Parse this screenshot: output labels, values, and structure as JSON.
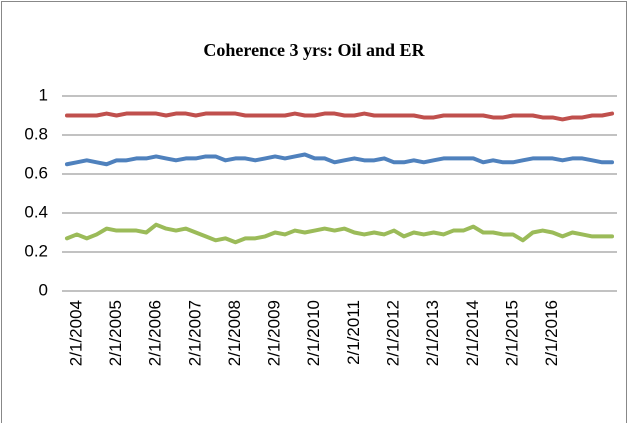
{
  "chart_data": {
    "type": "line",
    "title": "Coherence 3 yrs: Oil and ER",
    "categories": [
      null,
      "2/1/2004",
      null,
      null,
      null,
      "2/1/2005",
      null,
      null,
      null,
      "2/1/2006",
      null,
      null,
      null,
      "2/1/2007",
      null,
      null,
      null,
      "2/1/2008",
      null,
      null,
      null,
      "2/1/2009",
      null,
      null,
      null,
      "2/1/2010",
      null,
      null,
      null,
      "2/1/2011",
      null,
      null,
      null,
      "2/1/2012",
      null,
      null,
      null,
      "2/1/2013",
      null,
      null,
      null,
      "2/1/2014",
      null,
      null,
      null,
      "2/1/2015",
      null,
      null,
      null,
      "2/1/2016",
      null,
      null,
      null,
      null,
      null,
      null
    ],
    "series": [
      {
        "color": "#c0504d",
        "values": [
          0.9,
          0.9,
          0.9,
          0.9,
          0.91,
          0.9,
          0.91,
          0.91,
          0.91,
          0.91,
          0.9,
          0.91,
          0.91,
          0.9,
          0.91,
          0.91,
          0.91,
          0.91,
          0.9,
          0.9,
          0.9,
          0.9,
          0.9,
          0.91,
          0.9,
          0.9,
          0.91,
          0.91,
          0.9,
          0.9,
          0.91,
          0.9,
          0.9,
          0.9,
          0.9,
          0.9,
          0.89,
          0.89,
          0.9,
          0.9,
          0.9,
          0.9,
          0.9,
          0.89,
          0.89,
          0.9,
          0.9,
          0.9,
          0.89,
          0.89,
          0.88,
          0.89,
          0.89,
          0.9,
          0.9,
          0.91
        ]
      },
      {
        "color": "#4f81bd",
        "values": [
          0.65,
          0.66,
          0.67,
          0.66,
          0.65,
          0.67,
          0.67,
          0.68,
          0.68,
          0.69,
          0.68,
          0.67,
          0.68,
          0.68,
          0.69,
          0.69,
          0.67,
          0.68,
          0.68,
          0.67,
          0.68,
          0.69,
          0.68,
          0.69,
          0.7,
          0.68,
          0.68,
          0.66,
          0.67,
          0.68,
          0.67,
          0.67,
          0.68,
          0.66,
          0.66,
          0.67,
          0.66,
          0.67,
          0.68,
          0.68,
          0.68,
          0.68,
          0.66,
          0.67,
          0.66,
          0.66,
          0.67,
          0.68,
          0.68,
          0.68,
          0.67,
          0.68,
          0.68,
          0.67,
          0.66,
          0.66
        ]
      },
      {
        "color": "#9bbb59",
        "values": [
          0.27,
          0.29,
          0.27,
          0.29,
          0.32,
          0.31,
          0.31,
          0.31,
          0.3,
          0.34,
          0.32,
          0.31,
          0.32,
          0.3,
          0.28,
          0.26,
          0.27,
          0.25,
          0.27,
          0.27,
          0.28,
          0.3,
          0.29,
          0.31,
          0.3,
          0.31,
          0.32,
          0.31,
          0.32,
          0.3,
          0.29,
          0.3,
          0.29,
          0.31,
          0.28,
          0.3,
          0.29,
          0.3,
          0.29,
          0.31,
          0.31,
          0.33,
          0.3,
          0.3,
          0.29,
          0.29,
          0.26,
          0.3,
          0.31,
          0.3,
          0.28,
          0.3,
          0.29,
          0.28,
          0.28,
          0.28
        ]
      }
    ],
    "ylim": [
      0,
      1
    ],
    "yticks": [
      0,
      0.2,
      0.4,
      0.6,
      0.8,
      1
    ],
    "grid": true
  }
}
